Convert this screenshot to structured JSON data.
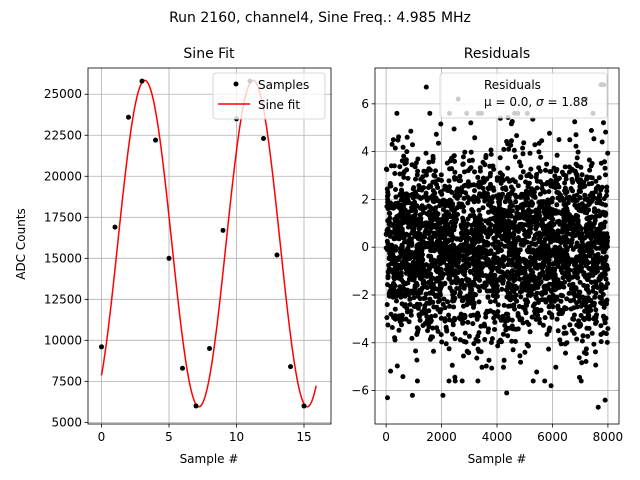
{
  "figure": {
    "suptitle": "Run 2160, channel4, Sine Freq.: 4.985 MHz"
  },
  "chart_data": [
    {
      "type": "line",
      "title": "Sine Fit",
      "xlabel": "Sample #",
      "ylabel": "ADC Counts",
      "xlim": [
        -1,
        17
      ],
      "ylim": [
        4900,
        26600
      ],
      "xticks": [
        0,
        5,
        10,
        15
      ],
      "yticks": [
        5000,
        7500,
        10000,
        12500,
        15000,
        17500,
        20000,
        22500,
        25000
      ],
      "grid": true,
      "legend_position": "top-right",
      "series": [
        {
          "name": "Samples",
          "style": "points",
          "color": "#000000",
          "x": [
            0,
            1,
            2,
            3,
            4,
            5,
            6,
            7,
            8,
            9,
            10,
            11,
            12,
            13,
            14,
            15
          ],
          "y": [
            9600,
            16900,
            23600,
            25800,
            22200,
            15000,
            8300,
            6000,
            9500,
            16700,
            23500,
            25800,
            22300,
            15200,
            8400,
            6000
          ]
        },
        {
          "name": "Sine fit",
          "style": "line",
          "color": "#ff0000",
          "model": {
            "offset": 15900,
            "amplitude": 9950,
            "period_samples": 8.025,
            "phase_rad": -0.94
          },
          "x_range": [
            0,
            15.9
          ]
        }
      ]
    },
    {
      "type": "scatter",
      "title": "Residuals",
      "xlabel": "Sample #",
      "ylabel": "",
      "xlim": [
        -400,
        8400
      ],
      "ylim": [
        -7.4,
        7.5
      ],
      "xticks": [
        0,
        2000,
        4000,
        6000,
        8000
      ],
      "yticks": [
        -6,
        -4,
        -2,
        0,
        2,
        4,
        6
      ],
      "grid": true,
      "legend_position": "top-right",
      "series": [
        {
          "name": "Residuals",
          "color": "#000000",
          "distribution": {
            "n": 8000,
            "mean": 0.0,
            "sigma": 1.88
          },
          "outliers": [
            {
              "x": 1450,
              "y": 6.7
            },
            {
              "x": 2600,
              "y": 6.2
            },
            {
              "x": 7200,
              "y": 6.2
            },
            {
              "x": 7750,
              "y": 6.8
            },
            {
              "x": 7850,
              "y": 6.8
            },
            {
              "x": 50,
              "y": -6.3
            },
            {
              "x": 950,
              "y": -6.2
            },
            {
              "x": 2050,
              "y": -6.2
            },
            {
              "x": 4350,
              "y": -6.1
            },
            {
              "x": 7650,
              "y": -6.7
            },
            {
              "x": 7900,
              "y": -6.4
            },
            {
              "x": 5950,
              "y": -5.8
            }
          ]
        }
      ],
      "legend_text": {
        "stats_line_prefix": "μ = 0.0, ",
        "sigma_symbol": "σ",
        "stats_line_suffix": " = 1.88"
      }
    }
  ]
}
